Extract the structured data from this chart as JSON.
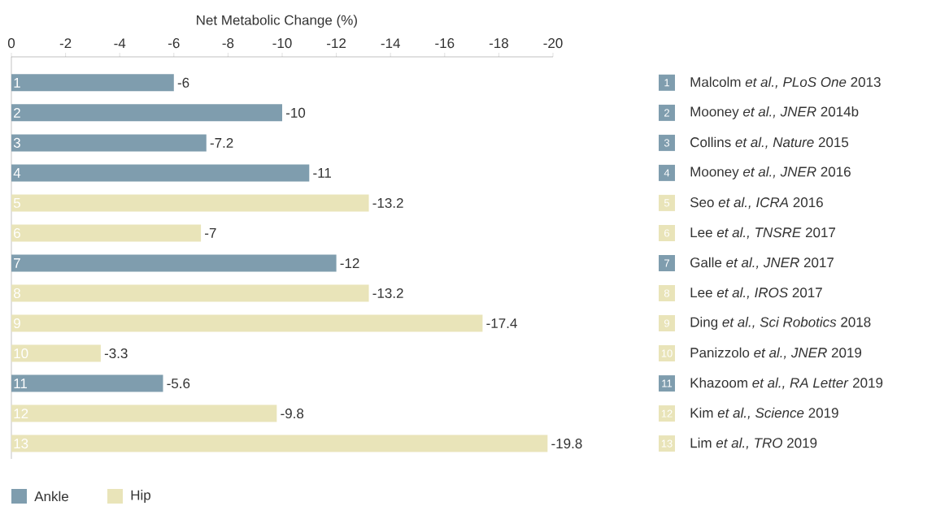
{
  "chart_data": {
    "type": "bar",
    "orientation": "horizontal",
    "xlabel": "Net Metabolic Change (%)",
    "categories": [
      "1",
      "2",
      "3",
      "4",
      "5",
      "6",
      "7",
      "8",
      "9",
      "10",
      "11",
      "12",
      "13"
    ],
    "series": [
      {
        "name": "Ankle",
        "color": "#7f9dae",
        "values": [
          -6,
          -10,
          -7.2,
          -11,
          null,
          null,
          -12,
          null,
          null,
          null,
          -5.6,
          null,
          null
        ]
      },
      {
        "name": "Hip",
        "color": "#e9e4b9",
        "values": [
          null,
          null,
          null,
          null,
          -13.2,
          -7,
          null,
          -13.2,
          -17.4,
          -3.3,
          null,
          -9.8,
          -19.8
        ]
      }
    ],
    "xlim": [
      0,
      -20
    ],
    "xticks": [
      0,
      -2,
      -4,
      -6,
      -8,
      -10,
      -12,
      -14,
      -16,
      -18,
      -20
    ],
    "data_labels": true,
    "legend": "bottom left",
    "annotations": [
      "Malcolm *et al., PLoS One* 2013",
      "Mooney *et al., JNER* 2014b",
      "Collins *et al., Nature* 2015",
      "Mooney *et al., JNER* 2016",
      "Seo *et al., ICRA* 2016",
      "Lee *et al., TNSRE* 2017",
      "Galle *et al., JNER* 2017",
      "Lee *et al., IROS* 2017",
      "Ding *et al., Sci Robotics* 2018",
      "Panizzolo *et al., JNER* 2019",
      "Khazoom *et al., RA Letter* 2019",
      "Kim *et al., Science* 2019",
      "Lim *et al., TRO* 2019"
    ]
  }
}
